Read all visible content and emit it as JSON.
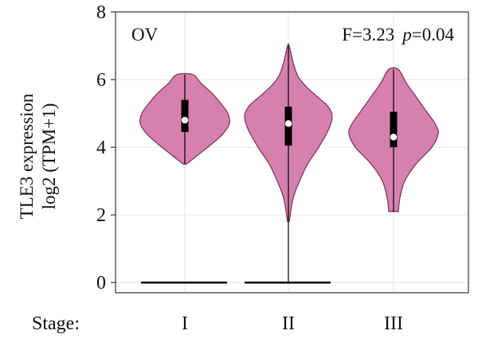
{
  "chart_data": {
    "type": "violin",
    "panel_label": "OV",
    "stats": {
      "f_label": "F=3.23",
      "p_symbol": "p",
      "p_value": "=0.04"
    },
    "ylabel_line1": "TLE3 expression",
    "ylabel_line2": "log2 (TPM+1)",
    "xlabel": "Stage:",
    "ylim": [
      -0.3,
      8
    ],
    "yticks": [
      0,
      2,
      4,
      6,
      8
    ],
    "categories": [
      "I",
      "II",
      "III"
    ],
    "groups": [
      {
        "name": "I",
        "min": 3.5,
        "max": 6.15,
        "q1": 4.45,
        "median": 4.8,
        "q3": 5.4,
        "profile": [
          [
            3.5,
            2
          ],
          [
            3.8,
            18
          ],
          [
            4.1,
            34
          ],
          [
            4.4,
            48
          ],
          [
            4.7,
            56
          ],
          [
            5.0,
            54
          ],
          [
            5.3,
            45
          ],
          [
            5.6,
            34
          ],
          [
            5.9,
            20
          ],
          [
            6.15,
            10
          ]
        ]
      },
      {
        "name": "II",
        "min": 1.8,
        "max": 7.0,
        "q1": 4.05,
        "median": 4.7,
        "q3": 5.2,
        "profile": [
          [
            1.8,
            1
          ],
          [
            2.5,
            6
          ],
          [
            3.0,
            14
          ],
          [
            3.5,
            24
          ],
          [
            4.0,
            38
          ],
          [
            4.5,
            50
          ],
          [
            4.9,
            55
          ],
          [
            5.2,
            50
          ],
          [
            5.5,
            36
          ],
          [
            5.8,
            22
          ],
          [
            6.1,
            12
          ],
          [
            6.5,
            6
          ],
          [
            7.0,
            1
          ]
        ]
      },
      {
        "name": "III",
        "min": 2.1,
        "max": 6.3,
        "q1": 4.0,
        "median": 4.3,
        "q3": 5.05,
        "profile": [
          [
            2.1,
            6
          ],
          [
            2.5,
            8
          ],
          [
            3.0,
            14
          ],
          [
            3.5,
            28
          ],
          [
            4.0,
            48
          ],
          [
            4.4,
            56
          ],
          [
            4.7,
            52
          ],
          [
            5.1,
            40
          ],
          [
            5.5,
            28
          ],
          [
            5.9,
            16
          ],
          [
            6.3,
            6
          ]
        ]
      }
    ],
    "zero_segments": [
      {
        "group": "I",
        "value": 0
      },
      {
        "group": "II",
        "value": 0
      }
    ],
    "colors": {
      "violin_fill": "#d47aa9",
      "violin_stroke": "#7a3a63",
      "box": "#000000",
      "median": "#ffffff",
      "frame": "#333333",
      "grid": "#e6e6e6"
    },
    "grid": true
  }
}
